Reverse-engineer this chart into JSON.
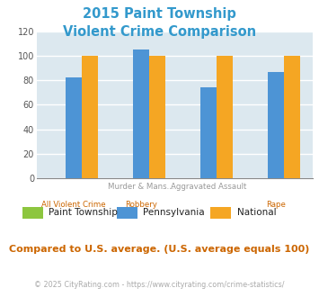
{
  "title_line1": "2015 Paint Township",
  "title_line2": "Violent Crime Comparison",
  "title_color": "#3399cc",
  "cat_labels_top": [
    "",
    "Murder & Mans...",
    "Aggravated Assault",
    ""
  ],
  "cat_labels_bottom": [
    "All Violent Crime",
    "Robbery",
    "",
    "Rape"
  ],
  "top_label_color": "#999999",
  "bottom_label_color": "#cc6600",
  "paint_township": [
    0,
    0,
    0,
    0
  ],
  "pennsylvania": [
    82,
    105,
    74,
    87
  ],
  "national": [
    100,
    100,
    100,
    100
  ],
  "color_paint": "#8dc63f",
  "color_pa": "#4d94d5",
  "color_national": "#f5a623",
  "ylim": [
    0,
    120
  ],
  "yticks": [
    0,
    20,
    40,
    60,
    80,
    100,
    120
  ],
  "bg_color": "#dce8ef",
  "grid_color": "#ffffff",
  "legend_labels": [
    "Paint Township",
    "Pennsylvania",
    "National"
  ],
  "footer_text": "Compared to U.S. average. (U.S. average equals 100)",
  "footer_color": "#cc6600",
  "copyright_text": "© 2025 CityRating.com - https://www.cityrating.com/crime-statistics/",
  "copyright_color": "#aaaaaa"
}
